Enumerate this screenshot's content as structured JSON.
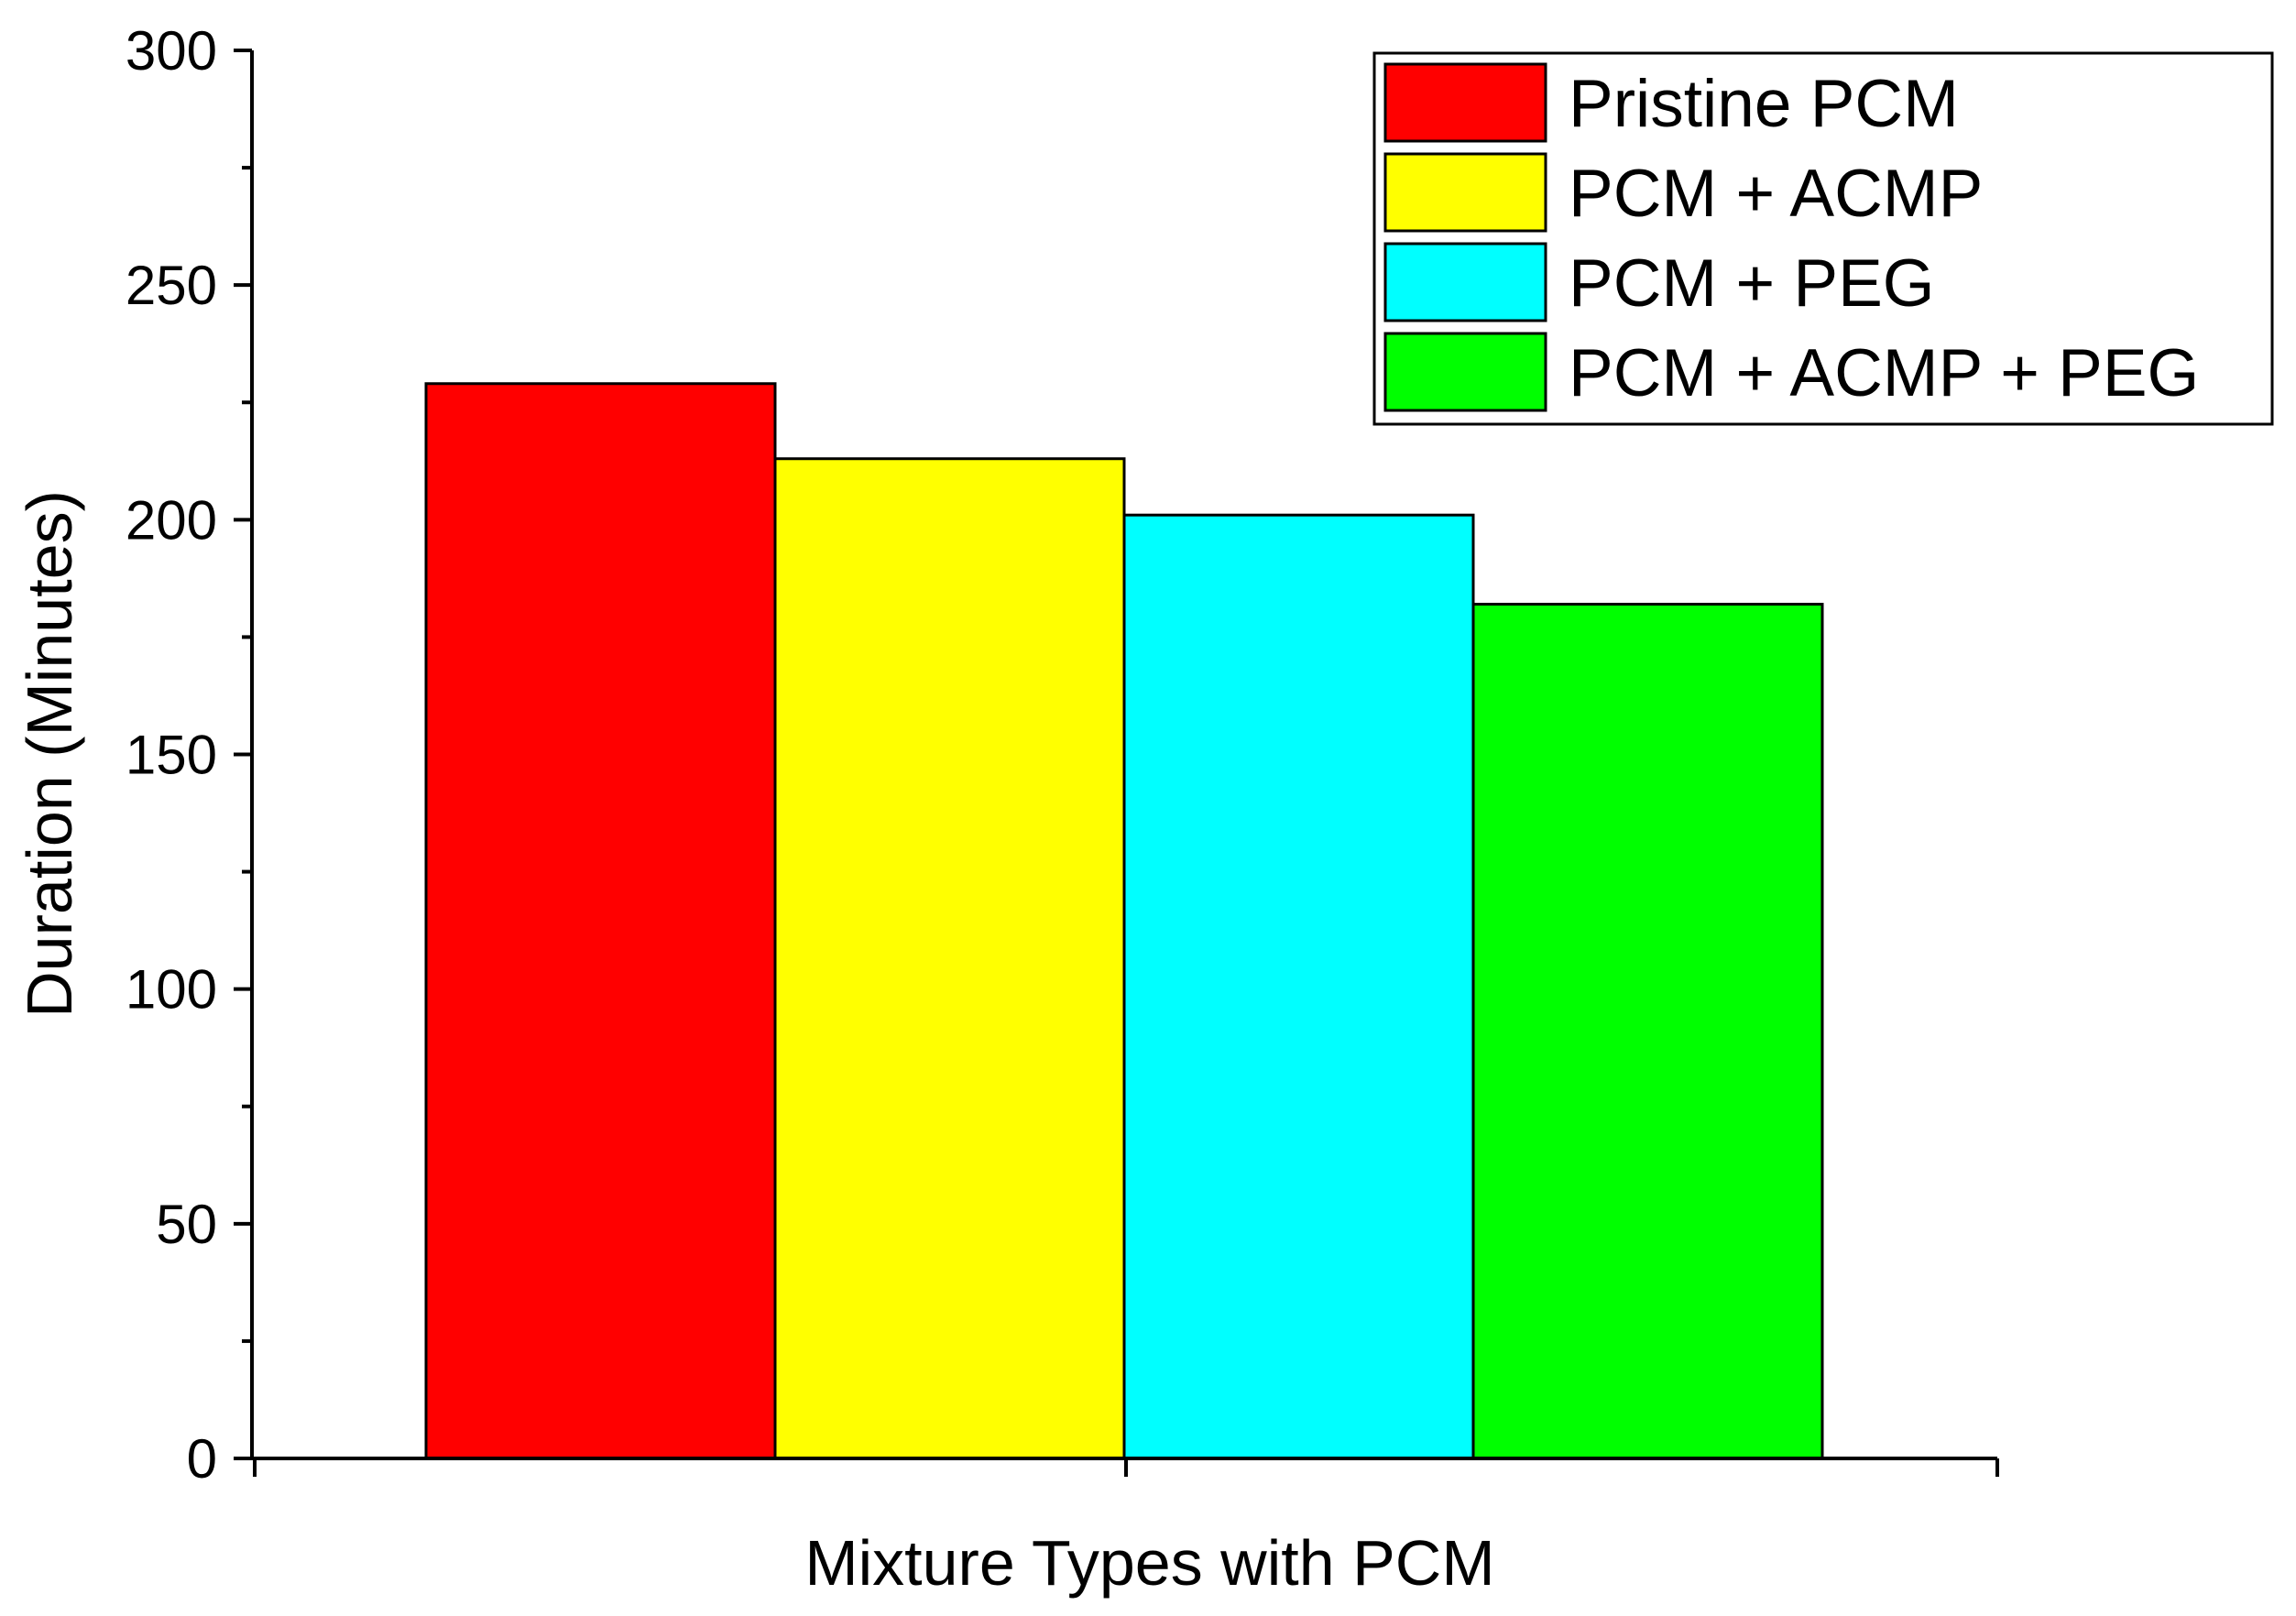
{
  "chart_data": {
    "type": "bar",
    "categories": [
      ""
    ],
    "series": [
      {
        "name": "Pristine PCM",
        "values": [
          229
        ],
        "color": "#ff0000"
      },
      {
        "name": "PCM + ACMP",
        "values": [
          213
        ],
        "color": "#ffff00"
      },
      {
        "name": "PCM + PEG",
        "values": [
          201
        ],
        "color": "#00ffff"
      },
      {
        "name": "PCM + ACMP + PEG",
        "values": [
          182
        ],
        "color": "#00ff00"
      }
    ],
    "xlabel": "Mixture Types with PCM",
    "ylabel": "Duration (Minutes)",
    "ylim": [
      0,
      300
    ],
    "yticks": [
      "0",
      "50",
      "100",
      "150",
      "200",
      "250",
      "300"
    ],
    "grid": false,
    "legend_position": "top-right"
  }
}
